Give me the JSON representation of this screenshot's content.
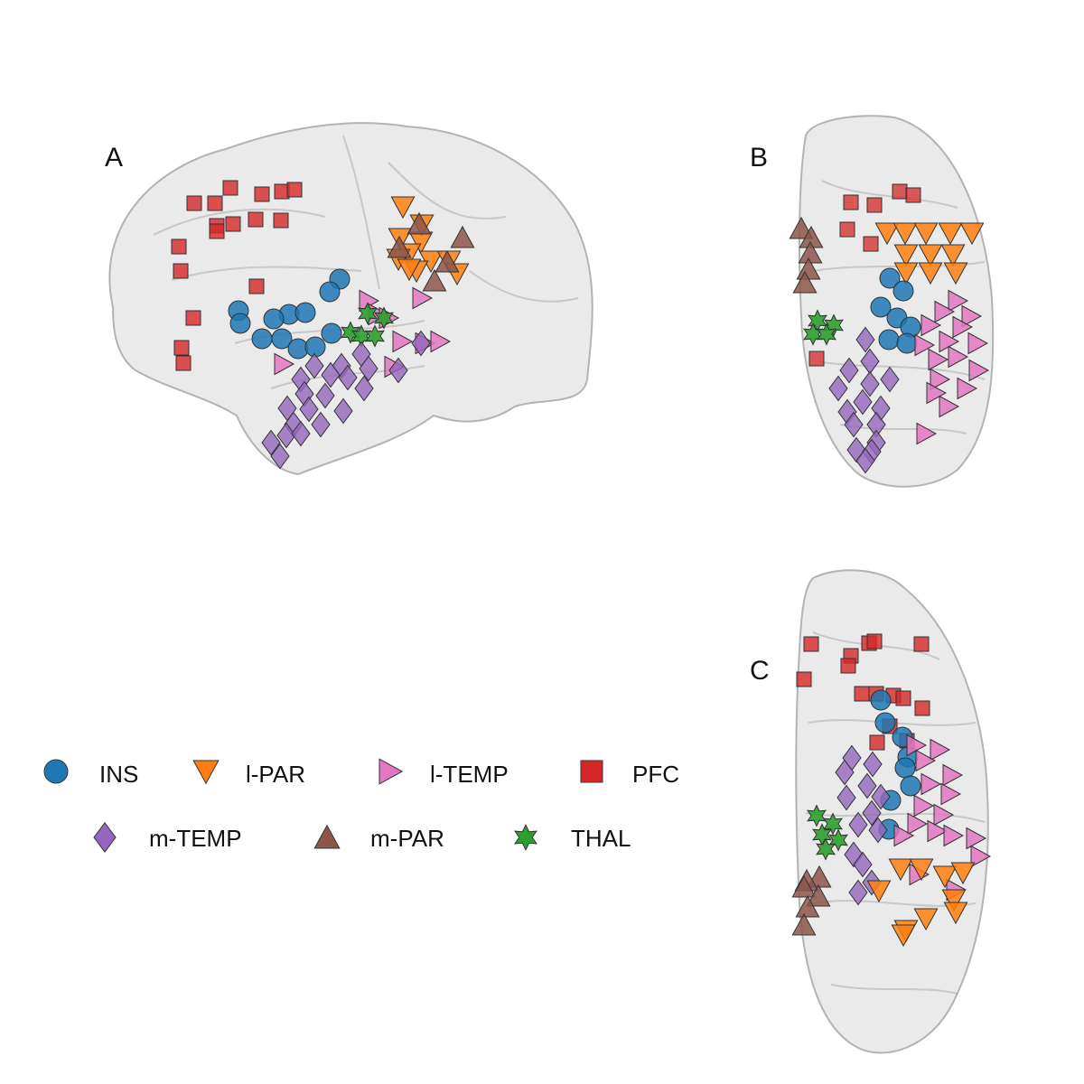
{
  "figure": {
    "panels": [
      {
        "id": "A",
        "label": "A",
        "view": "sagittal"
      },
      {
        "id": "B",
        "label": "B",
        "view": "coronal"
      },
      {
        "id": "C",
        "label": "C",
        "view": "axial"
      }
    ]
  },
  "legend": {
    "items": [
      {
        "key": "ins",
        "label": "INS",
        "marker": "circle",
        "color": "#1f77b4"
      },
      {
        "key": "lpar",
        "label": "l-PAR",
        "marker": "triangle-down",
        "color": "#ff7f0e"
      },
      {
        "key": "ltemp",
        "label": "l-TEMP",
        "marker": "triangle-right",
        "color": "#e377c2"
      },
      {
        "key": "pfc",
        "label": "PFC",
        "marker": "square",
        "color": "#d62728"
      },
      {
        "key": "mtemp",
        "label": "m-TEMP",
        "marker": "diamond",
        "color": "#9467bd"
      },
      {
        "key": "mpar",
        "label": "m-PAR",
        "marker": "triangle-up",
        "color": "#8c564b"
      },
      {
        "key": "thal",
        "label": "THAL",
        "marker": "star6",
        "color": "#2ca02c"
      }
    ]
  },
  "colors": {
    "brain_fill": "#d9d9d9",
    "brain_stroke": "#b3b3b3",
    "marker_stroke": "#333333"
  }
}
